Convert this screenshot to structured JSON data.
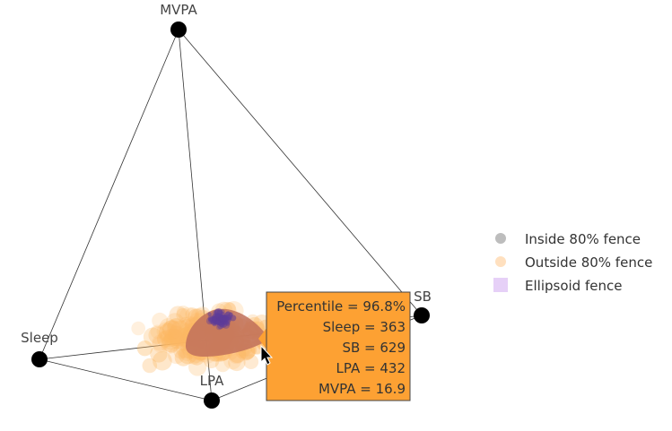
{
  "chart_data": {
    "type": "scatter",
    "projection": "3d-tetrahedron",
    "vertices": [
      "MVPA",
      "SB",
      "Sleep",
      "LPA"
    ],
    "legend": {
      "placement": "right",
      "items": [
        {
          "label": "Inside 80% fence",
          "color": "#bdbdbd",
          "shape": "circle"
        },
        {
          "label": "Outside 80% fence",
          "color": "#ffe0bf",
          "shape": "circle"
        },
        {
          "label": "Ellipsoid fence",
          "color": "#e6d0f7",
          "shape": "square"
        }
      ]
    },
    "colors": {
      "edge": "#333333",
      "vertex": "#000000",
      "outside_points": "#fdb863",
      "inside_points": "#5e3c99",
      "ellipsoid": "#c0705a"
    },
    "hover": {
      "lines": [
        "Percentile = 96.8%",
        "Sleep = 363",
        "SB = 629",
        "LPA = 432",
        "MVPA = 16.9"
      ],
      "background": "#fda133"
    }
  }
}
